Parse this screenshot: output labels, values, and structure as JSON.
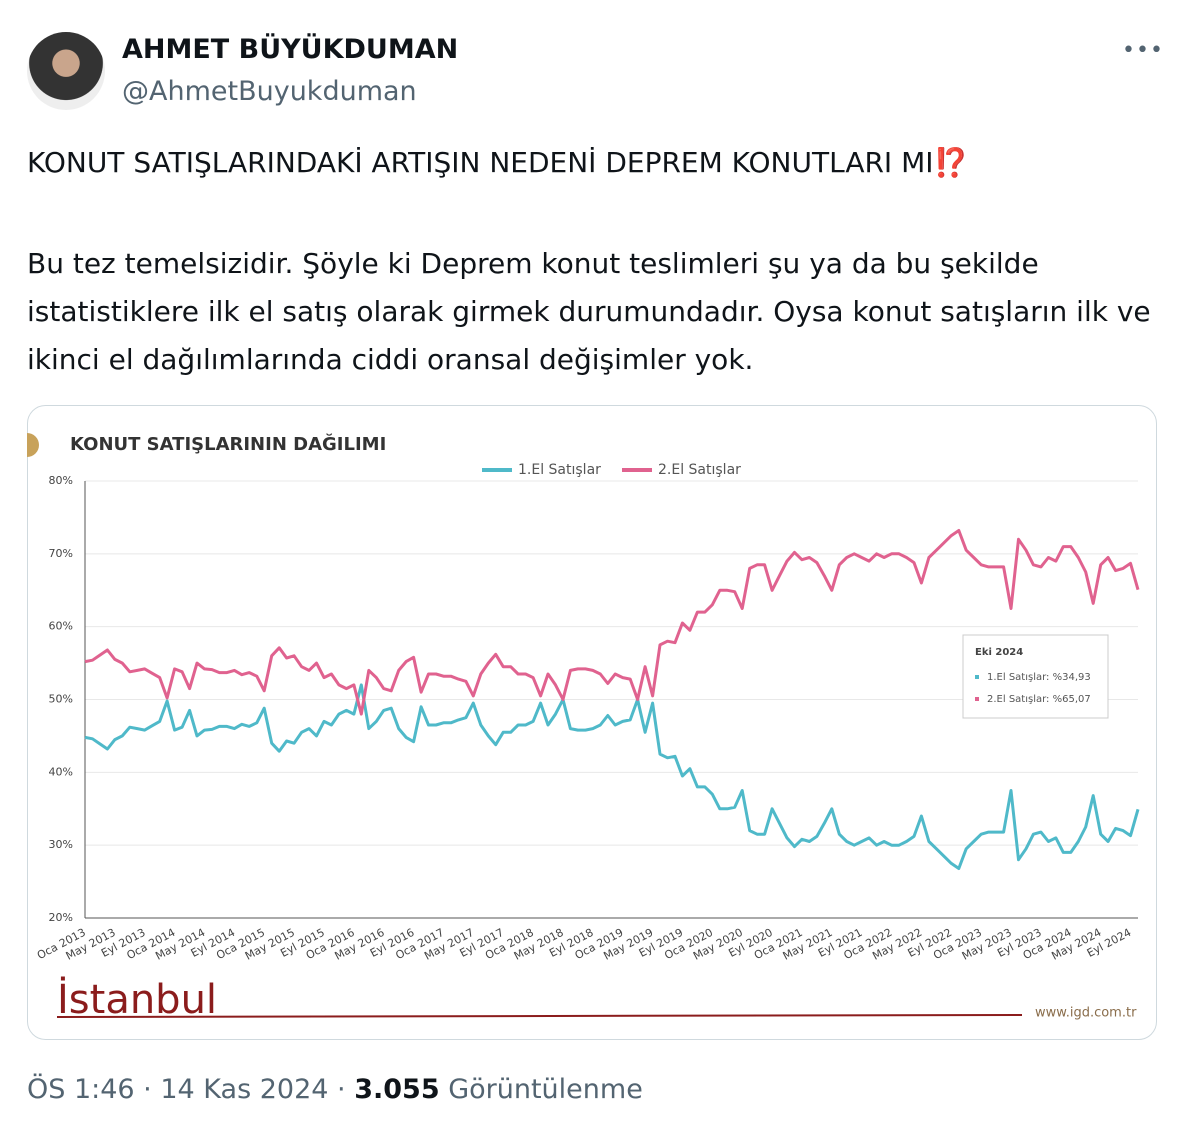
{
  "tweet": {
    "author": "AHMET BÜYÜKDUMAN",
    "handle": "@AhmetBuyukduman",
    "headline": "KONUT SATIŞLARINDAKİ ARTIŞIN NEDENİ DEPREM KONUTLARI MI⁉️",
    "body": "Bu tez temelsizidir. Şöyle ki Deprem konut teslimleri şu ya da bu şekilde istatistiklere ilk el satış olarak girmek durumundadır. Oysa konut satışların ilk ve ikinci el dağılımlarında ciddi oransal değişimler yok.",
    "timestamp": "ÖS 1:46 · 14 Kas 2024 ·",
    "views": "3.055",
    "views_label": "Görüntülenme"
  },
  "chart_data": {
    "type": "line",
    "title": "KONUT SATIŞLARININ DAĞILIMI",
    "brand": "İstanbul",
    "source": "www.igd.com.tr",
    "categories": [
      "Oca 2013",
      null,
      null,
      null,
      "May 2013",
      null,
      null,
      null,
      "Eyl 2013",
      null,
      null,
      null,
      "Oca 2014",
      null,
      null,
      null,
      "May 2014",
      null,
      null,
      null,
      "Eyl 2014",
      null,
      null,
      null,
      "Oca 2015",
      null,
      null,
      null,
      "May 2015",
      null,
      null,
      null,
      "Eyl 2015",
      null,
      null,
      null,
      "Oca 2016",
      null,
      null,
      null,
      "May 2016",
      null,
      null,
      null,
      "Eyl 2016",
      null,
      null,
      null,
      "Oca 2017",
      null,
      null,
      null,
      "May 2017",
      null,
      null,
      null,
      "Eyl 2017",
      null,
      null,
      null,
      "Oca 2018",
      null,
      null,
      null,
      "May 2018",
      null,
      null,
      null,
      "Eyl 2018",
      null,
      null,
      null,
      "Oca 2019",
      null,
      null,
      null,
      "May 2019",
      null,
      null,
      null,
      "Eyl 2019",
      null,
      null,
      null,
      "Oca 2020",
      null,
      null,
      null,
      "May 2020",
      null,
      null,
      null,
      "Eyl 2020",
      null,
      null,
      null,
      "Oca 2021",
      null,
      null,
      null,
      "May 2021",
      null,
      null,
      null,
      "Eyl 2021",
      null,
      null,
      null,
      "Oca 2022",
      null,
      null,
      null,
      "May 2022",
      null,
      null,
      null,
      "Eyl 2022",
      null,
      null,
      null,
      "Oca 2023",
      null,
      null,
      null,
      "May 2023",
      null,
      null,
      null,
      "Eyl 2023",
      null,
      null,
      null,
      "Oca 2024",
      null,
      null,
      null,
      "May 2024",
      null,
      null,
      null,
      "Eyl 2024",
      null
    ],
    "series": [
      {
        "name": "1.El Satışlar",
        "color": "#4fb9c9",
        "values": [
          44.8,
          44.6,
          43.9,
          43.2,
          44.5,
          45.0,
          46.2,
          46.0,
          45.8,
          46.4,
          47.0,
          49.8,
          45.8,
          46.2,
          48.5,
          45.0,
          45.8,
          45.9,
          46.3,
          46.3,
          46.0,
          46.6,
          46.3,
          46.8,
          48.8,
          44.0,
          42.9,
          44.3,
          44.0,
          45.5,
          46.0,
          45.0,
          47.0,
          46.5,
          48.0,
          48.5,
          48.0,
          52.0,
          46.0,
          47.0,
          48.5,
          48.8,
          46.0,
          44.8,
          44.2,
          49.0,
          46.5,
          46.5,
          46.8,
          46.8,
          47.2,
          47.5,
          49.5,
          46.5,
          45.0,
          43.8,
          45.5,
          45.5,
          46.5,
          46.5,
          47.0,
          49.5,
          46.5,
          48.0,
          50.0,
          46.0,
          45.8,
          45.8,
          46.0,
          46.5,
          47.8,
          46.5,
          47.0,
          47.2,
          50.0,
          45.5,
          49.5,
          42.5,
          42.0,
          42.2,
          39.5,
          40.5,
          38.0,
          38.0,
          37.0,
          35.0,
          35.0,
          35.2,
          37.5,
          32.0,
          31.5,
          31.5,
          35.0,
          33.0,
          31.0,
          29.8,
          30.8,
          30.5,
          31.2,
          33.0,
          35.0,
          31.5,
          30.5,
          30.0,
          30.5,
          31.0,
          30.0,
          30.5,
          30.0,
          30.0,
          30.5,
          31.2,
          34.0,
          30.5,
          29.5,
          28.5,
          27.5,
          26.8,
          29.5,
          30.5,
          31.5,
          31.8,
          31.8,
          31.8,
          37.5,
          28.0,
          29.5,
          31.5,
          31.8,
          30.5,
          31.0,
          29.0,
          29.0,
          30.5,
          32.5,
          36.8,
          31.5,
          30.5,
          32.3,
          32.0,
          31.3,
          34.93
        ]
      },
      {
        "name": "2.El Satışlar",
        "color": "#e0628f",
        "values": [
          55.2,
          55.4,
          56.1,
          56.8,
          55.5,
          55.0,
          53.8,
          54.0,
          54.2,
          53.6,
          53.0,
          50.2,
          54.2,
          53.8,
          51.5,
          55.0,
          54.2,
          54.1,
          53.7,
          53.7,
          54.0,
          53.4,
          53.7,
          53.2,
          51.2,
          56.0,
          57.1,
          55.7,
          56.0,
          54.5,
          54.0,
          55.0,
          53.0,
          53.5,
          52.0,
          51.5,
          52.0,
          48.0,
          54.0,
          53.0,
          51.5,
          51.2,
          54.0,
          55.2,
          55.8,
          51.0,
          53.5,
          53.5,
          53.2,
          53.2,
          52.8,
          52.5,
          50.5,
          53.5,
          55.0,
          56.2,
          54.5,
          54.5,
          53.5,
          53.5,
          53.0,
          50.5,
          53.5,
          52.0,
          50.0,
          54.0,
          54.2,
          54.2,
          54.0,
          53.5,
          52.2,
          53.5,
          53.0,
          52.8,
          50.0,
          54.5,
          50.5,
          57.5,
          58.0,
          57.8,
          60.5,
          59.5,
          62.0,
          62.0,
          63.0,
          65.0,
          65.0,
          64.8,
          62.5,
          68.0,
          68.5,
          68.5,
          65.0,
          67.0,
          69.0,
          70.2,
          69.2,
          69.5,
          68.8,
          67.0,
          65.0,
          68.5,
          69.5,
          70.0,
          69.5,
          69.0,
          70.0,
          69.5,
          70.0,
          70.0,
          69.5,
          68.8,
          66.0,
          69.5,
          70.5,
          71.5,
          72.5,
          73.2,
          70.5,
          69.5,
          68.5,
          68.2,
          68.2,
          68.2,
          62.5,
          72.0,
          70.5,
          68.5,
          68.2,
          69.5,
          69.0,
          71.0,
          71.0,
          69.5,
          67.5,
          63.2,
          68.5,
          69.5,
          67.7,
          68.0,
          68.7,
          65.07
        ]
      }
    ],
    "ylim": [
      20,
      80
    ],
    "yticks": [
      {
        "value": 20,
        "label": "20%"
      },
      {
        "value": 30,
        "label": "30%"
      },
      {
        "value": 40,
        "label": "40%"
      },
      {
        "value": 50,
        "label": "50%"
      },
      {
        "value": 60,
        "label": "60%"
      },
      {
        "value": 70,
        "label": "70%"
      },
      {
        "value": 80,
        "label": "80%"
      }
    ],
    "grid": true,
    "legend": "top",
    "tooltip": {
      "title": "Eki 2024",
      "lines": [
        "1.El Satışlar: %34,93",
        "2.El Satışlar: %65,07"
      ]
    }
  }
}
